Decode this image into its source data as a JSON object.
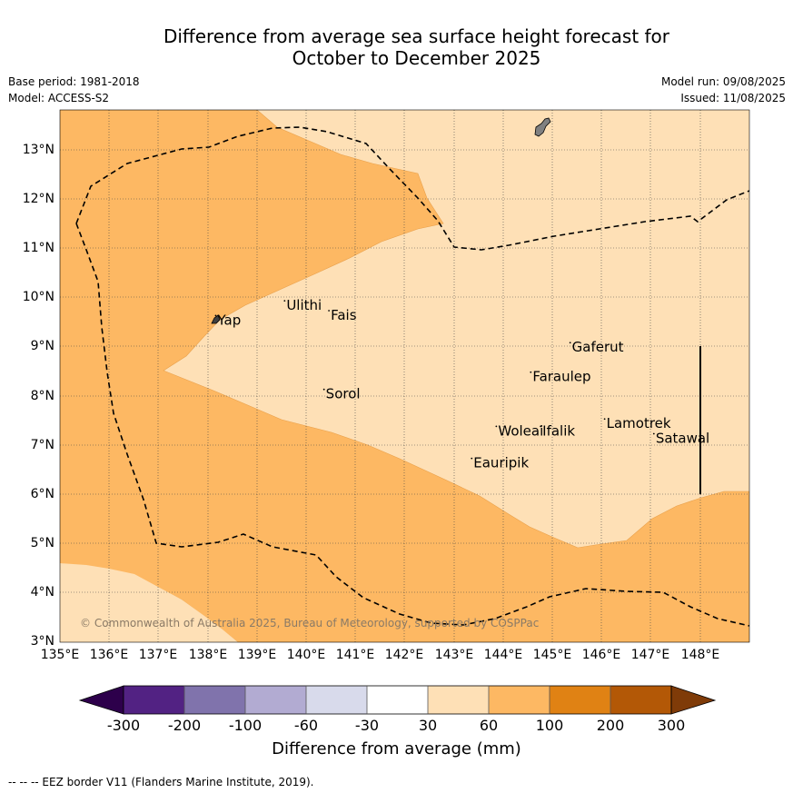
{
  "title": {
    "line1": "Difference from average sea surface height forecast for",
    "line2": "October to December 2025"
  },
  "meta": {
    "base_period": "Base period: 1981-2018",
    "model": "Model: ACCESS-S2",
    "model_run": "Model run: 09/08/2025",
    "issued": "Issued: 11/08/2025"
  },
  "map": {
    "lat_ticks": [
      "13°N",
      "12°N",
      "11°N",
      "10°N",
      "9°N",
      "8°N",
      "7°N",
      "6°N",
      "5°N",
      "4°N",
      "3°N"
    ],
    "lon_ticks": [
      "135°E",
      "136°E",
      "137°E",
      "138°E",
      "139°E",
      "140°E",
      "141°E",
      "142°E",
      "143°E",
      "144°E",
      "145°E",
      "146°E",
      "147°E",
      "148°E"
    ],
    "places": [
      {
        "name": "Yap",
        "lon": 138.2,
        "lat": 9.45
      },
      {
        "name": "Ulithi",
        "lon": 139.6,
        "lat": 9.75
      },
      {
        "name": "Fais",
        "lon": 140.5,
        "lat": 9.55
      },
      {
        "name": "Gaferut",
        "lon": 145.4,
        "lat": 8.9
      },
      {
        "name": "Faraulep",
        "lon": 144.6,
        "lat": 8.3
      },
      {
        "name": "Sorol",
        "lon": 140.4,
        "lat": 7.95
      },
      {
        "name": "Woleai",
        "lon": 143.9,
        "lat": 7.2
      },
      {
        "name": "Ifalik",
        "lon": 144.8,
        "lat": 7.2
      },
      {
        "name": "Lamotrek",
        "lon": 146.1,
        "lat": 7.35
      },
      {
        "name": "Satawal",
        "lon": 147.1,
        "lat": 7.05
      },
      {
        "name": "Eauripik",
        "lon": 143.4,
        "lat": 6.55
      }
    ],
    "copyright": "© Commonwealth of Australia 2025, Bureau of Meteorology, supported by COSPPac"
  },
  "colorbar": {
    "ticks": [
      "-300",
      "-200",
      "-100",
      "-60",
      "-30",
      "30",
      "60",
      "100",
      "200",
      "300"
    ],
    "colors": [
      "#522283",
      "#8073ac",
      "#b2abd2",
      "#d8daeb",
      "#ffffff",
      "#fee0b6",
      "#fdb863",
      "#e08214",
      "#b35806"
    ],
    "under_color": "#2d004b",
    "over_color": "#7f3b08",
    "label": "Difference from average (mm)"
  },
  "footnote": "--  --  -- EEZ border V11 (Flanders Marine Institute, 2019)."
}
